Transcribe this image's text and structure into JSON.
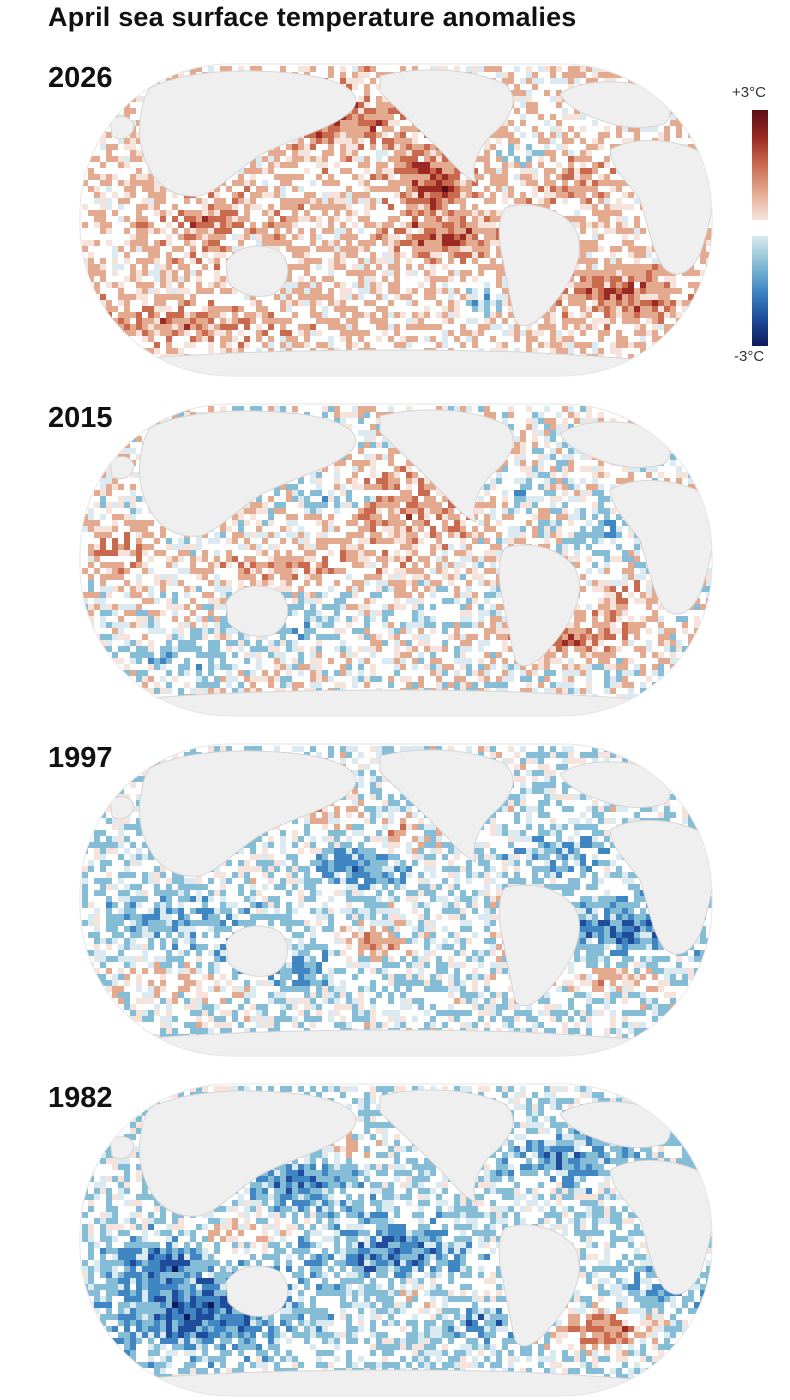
{
  "title": "April sea surface temperature anomalies",
  "legend": {
    "max_label": "+3°C",
    "min_label": "-3°C"
  },
  "colors": {
    "warm_scale": [
      "#f6e4dc",
      "#e3aa90",
      "#c96a4f",
      "#9a2a23",
      "#5a0d16"
    ],
    "cool_scale": [
      "#dbeaf0",
      "#86bdd6",
      "#3f86c2",
      "#1f4d9c",
      "#0d1c5c"
    ],
    "land": "#efefef",
    "ocean_neutral": "#ffffff"
  },
  "maps": [
    {
      "year": "2026",
      "tone": "warm"
    },
    {
      "year": "2015",
      "tone": "mixed-warm"
    },
    {
      "year": "1997",
      "tone": "mixed-cool"
    },
    {
      "year": "1982",
      "tone": "cool"
    }
  ]
}
